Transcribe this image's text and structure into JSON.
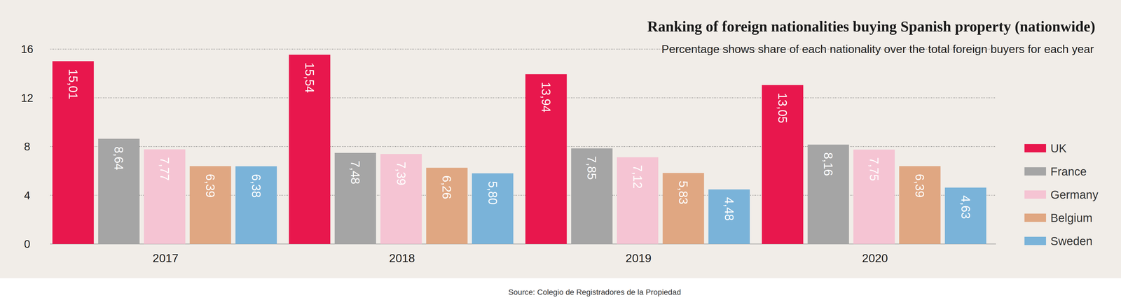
{
  "chart_data": {
    "type": "bar",
    "title": "Ranking of foreign nationalities buying Spanish property (nationwide)",
    "subtitle": "Percentage shows share of each nationality over the total foreign buyers for each year",
    "source": "Source: Colegio de Registradores de la Propiedad",
    "categories": [
      "2017",
      "2018",
      "2019",
      "2020"
    ],
    "series": [
      {
        "name": "UK",
        "color": "#e8174d",
        "values": [
          15.01,
          15.54,
          13.94,
          13.05
        ],
        "value_labels": [
          "15,01",
          "15,54",
          "13,94",
          "13,05"
        ]
      },
      {
        "name": "France",
        "color": "#a5a5a5",
        "values": [
          8.64,
          7.48,
          7.85,
          8.16
        ],
        "value_labels": [
          "8,64",
          "7,48",
          "7,85",
          "8,16"
        ]
      },
      {
        "name": "Germany",
        "color": "#f5c4d3",
        "values": [
          7.77,
          7.39,
          7.12,
          7.75
        ],
        "value_labels": [
          "7,77",
          "7,39",
          "7,12",
          "7,75"
        ]
      },
      {
        "name": "Belgium",
        "color": "#e0a782",
        "values": [
          6.39,
          6.26,
          5.83,
          6.39
        ],
        "value_labels": [
          "6,39",
          "6,26",
          "5,83",
          "6,39"
        ]
      },
      {
        "name": "Sweden",
        "color": "#7ab3d9",
        "values": [
          6.38,
          5.8,
          4.48,
          4.63
        ],
        "value_labels": [
          "6,38",
          "5,80",
          "4,48",
          "4,63"
        ]
      }
    ],
    "ylim": [
      0,
      16
    ],
    "yticks": [
      0,
      4,
      8,
      12,
      16
    ],
    "grid": true,
    "legend": "right",
    "data_labels": true
  }
}
